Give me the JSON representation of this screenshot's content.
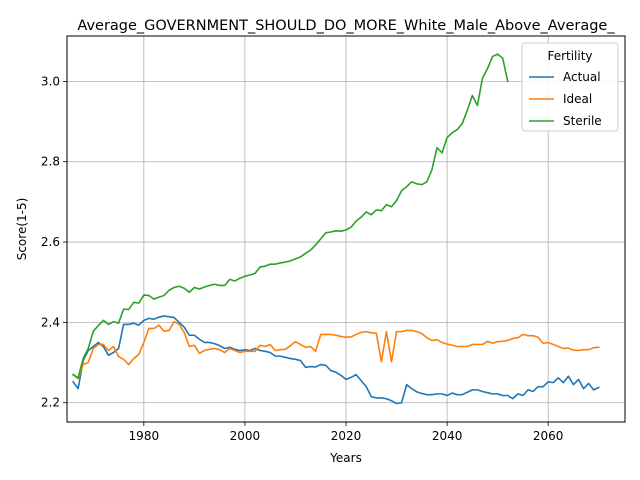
{
  "chart_data": {
    "type": "line",
    "title": "Average_GOVERNMENT_SHOULD_DO_MORE_White_Male_Above_Average_",
    "xlabel": "Years",
    "ylabel": "Score(1-5)",
    "xlim": [
      1964.8,
      2075.2
    ],
    "ylim": [
      2.152,
      3.113
    ],
    "xticks": [
      1980,
      2000,
      2020,
      2040,
      2060
    ],
    "yticks": [
      2.2,
      2.4,
      2.6,
      2.8,
      3.0
    ],
    "xtick_labels": [
      "1980",
      "2000",
      "2020",
      "2040",
      "2060"
    ],
    "ytick_labels": [
      "2.2",
      "2.4",
      "2.6",
      "2.8",
      "3.0"
    ],
    "grid": true,
    "legend": {
      "title": "Fertility",
      "placement": "upper right"
    },
    "series": [
      {
        "name": "Actual",
        "color": "#1f77b4",
        "x": [
          1966,
          1967,
          1968,
          1969,
          1970,
          1971,
          1972,
          1973,
          1974,
          1975,
          1976,
          1977,
          1978,
          1979,
          1980,
          1981,
          1982,
          1983,
          1984,
          1985,
          1986,
          1987,
          1988,
          1989,
          1990,
          1991,
          1992,
          1993,
          1994,
          1995,
          1996,
          1997,
          1998,
          1999,
          2000,
          2001,
          2002,
          2003,
          2004,
          2005,
          2006,
          2007,
          2008,
          2009,
          2010,
          2011,
          2012,
          2013,
          2014,
          2015,
          2016,
          2017,
          2018,
          2019,
          2020,
          2021,
          2022,
          2023,
          2024,
          2025,
          2026,
          2027,
          2028,
          2029,
          2030,
          2031,
          2032,
          2033,
          2034,
          2035,
          2036,
          2037,
          2038,
          2039,
          2040,
          2041,
          2042,
          2043,
          2044,
          2045,
          2046,
          2047,
          2048,
          2049,
          2050,
          2051,
          2052,
          2053,
          2054,
          2055,
          2056,
          2057,
          2058,
          2059,
          2060,
          2061,
          2062,
          2063,
          2064,
          2065,
          2066,
          2067,
          2068,
          2069,
          2070
        ],
        "values": [
          2.252,
          2.235,
          2.305,
          2.33,
          2.34,
          2.35,
          2.34,
          2.318,
          2.325,
          2.335,
          2.395,
          2.395,
          2.398,
          2.393,
          2.405,
          2.41,
          2.408,
          2.413,
          2.416,
          2.414,
          2.412,
          2.4,
          2.388,
          2.368,
          2.368,
          2.358,
          2.35,
          2.35,
          2.347,
          2.342,
          2.335,
          2.338,
          2.333,
          2.33,
          2.332,
          2.33,
          2.335,
          2.33,
          2.328,
          2.325,
          2.316,
          2.316,
          2.313,
          2.31,
          2.308,
          2.305,
          2.288,
          2.29,
          2.289,
          2.295,
          2.293,
          2.28,
          2.276,
          2.268,
          2.258,
          2.263,
          2.27,
          2.255,
          2.24,
          2.215,
          2.212,
          2.212,
          2.21,
          2.205,
          2.198,
          2.2,
          2.245,
          2.235,
          2.227,
          2.223,
          2.22,
          2.22,
          2.222,
          2.222,
          2.218,
          2.224,
          2.22,
          2.22,
          2.226,
          2.232,
          2.232,
          2.228,
          2.225,
          2.222,
          2.222,
          2.218,
          2.218,
          2.21,
          2.222,
          2.218,
          2.232,
          2.228,
          2.24,
          2.24,
          2.252,
          2.25,
          2.262,
          2.25,
          2.266,
          2.245,
          2.258,
          2.235,
          2.248,
          2.232,
          2.238
        ]
      },
      {
        "name": "Ideal",
        "color": "#ff7f0e",
        "x": [
          1966,
          1967,
          1968,
          1969,
          1970,
          1971,
          1972,
          1973,
          1974,
          1975,
          1976,
          1977,
          1978,
          1979,
          1980,
          1981,
          1982,
          1983,
          1984,
          1985,
          1986,
          1987,
          1988,
          1989,
          1990,
          1991,
          1992,
          1993,
          1994,
          1995,
          1996,
          1997,
          1998,
          1999,
          2000,
          2001,
          2002,
          2003,
          2004,
          2005,
          2006,
          2007,
          2008,
          2009,
          2010,
          2011,
          2012,
          2013,
          2014,
          2015,
          2016,
          2017,
          2018,
          2019,
          2020,
          2021,
          2022,
          2023,
          2024,
          2025,
          2026,
          2027,
          2028,
          2029,
          2030,
          2031,
          2032,
          2033,
          2034,
          2035,
          2036,
          2037,
          2038,
          2039,
          2040,
          2041,
          2042,
          2043,
          2044,
          2045,
          2046,
          2047,
          2048,
          2049,
          2050,
          2051,
          2052,
          2053,
          2054,
          2055,
          2056,
          2057,
          2058,
          2059,
          2060,
          2061,
          2062,
          2063,
          2064,
          2065,
          2066,
          2067,
          2068,
          2069,
          2070
        ],
        "values": [
          2.27,
          2.26,
          2.295,
          2.3,
          2.335,
          2.345,
          2.345,
          2.33,
          2.34,
          2.315,
          2.308,
          2.295,
          2.31,
          2.32,
          2.35,
          2.385,
          2.385,
          2.393,
          2.378,
          2.38,
          2.402,
          2.395,
          2.375,
          2.34,
          2.343,
          2.323,
          2.33,
          2.333,
          2.335,
          2.332,
          2.325,
          2.335,
          2.33,
          2.325,
          2.328,
          2.328,
          2.328,
          2.343,
          2.34,
          2.345,
          2.33,
          2.332,
          2.333,
          2.342,
          2.352,
          2.345,
          2.338,
          2.34,
          2.328,
          2.37,
          2.37,
          2.37,
          2.368,
          2.365,
          2.363,
          2.364,
          2.37,
          2.375,
          2.377,
          2.374,
          2.373,
          2.302,
          2.377,
          2.302,
          2.377,
          2.377,
          2.38,
          2.38,
          2.377,
          2.372,
          2.362,
          2.355,
          2.357,
          2.35,
          2.346,
          2.343,
          2.34,
          2.34,
          2.34,
          2.345,
          2.345,
          2.345,
          2.353,
          2.348,
          2.352,
          2.353,
          2.355,
          2.36,
          2.362,
          2.37,
          2.367,
          2.367,
          2.363,
          2.348,
          2.35,
          2.345,
          2.34,
          2.335,
          2.336,
          2.331,
          2.33,
          2.332,
          2.332,
          2.337,
          2.338
        ]
      },
      {
        "name": "Sterile",
        "color": "#2ca02c",
        "x": [
          1966,
          1967,
          1968,
          1969,
          1970,
          1971,
          1972,
          1973,
          1974,
          1975,
          1976,
          1977,
          1978,
          1979,
          1980,
          1981,
          1982,
          1983,
          1984,
          1985,
          1986,
          1987,
          1988,
          1989,
          1990,
          1991,
          1992,
          1993,
          1994,
          1995,
          1996,
          1997,
          1998,
          1999,
          2000,
          2001,
          2002,
          2003,
          2004,
          2005,
          2006,
          2007,
          2008,
          2009,
          2010,
          2011,
          2012,
          2013,
          2014,
          2015,
          2016,
          2017,
          2018,
          2019,
          2020,
          2021,
          2022,
          2023,
          2024,
          2025,
          2026,
          2027,
          2028,
          2029,
          2030,
          2031,
          2032,
          2033,
          2034,
          2035,
          2036,
          2037,
          2038,
          2039,
          2040,
          2041,
          2042,
          2043,
          2044,
          2045,
          2046,
          2047,
          2048,
          2049,
          2050,
          2051,
          2052
        ],
        "values": [
          2.27,
          2.262,
          2.31,
          2.335,
          2.378,
          2.392,
          2.405,
          2.395,
          2.402,
          2.398,
          2.433,
          2.432,
          2.45,
          2.448,
          2.468,
          2.467,
          2.458,
          2.463,
          2.467,
          2.48,
          2.487,
          2.49,
          2.485,
          2.475,
          2.487,
          2.483,
          2.488,
          2.492,
          2.495,
          2.492,
          2.492,
          2.507,
          2.503,
          2.51,
          2.515,
          2.518,
          2.522,
          2.538,
          2.54,
          2.545,
          2.545,
          2.548,
          2.55,
          2.553,
          2.558,
          2.563,
          2.572,
          2.58,
          2.593,
          2.608,
          2.623,
          2.625,
          2.628,
          2.627,
          2.63,
          2.637,
          2.652,
          2.662,
          2.675,
          2.668,
          2.68,
          2.678,
          2.693,
          2.688,
          2.703,
          2.728,
          2.738,
          2.75,
          2.745,
          2.743,
          2.75,
          2.78,
          2.835,
          2.822,
          2.86,
          2.872,
          2.88,
          2.895,
          2.928,
          2.965,
          2.94,
          3.008,
          3.032,
          3.062,
          3.068,
          3.058,
          3.0
        ]
      }
    ]
  }
}
